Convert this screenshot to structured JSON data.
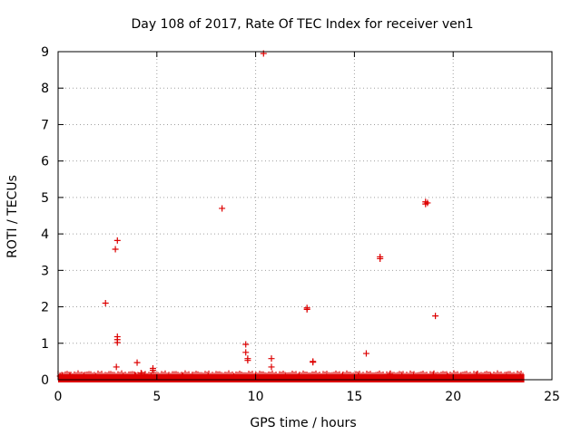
{
  "chart_data": {
    "type": "scatter",
    "title": "Day 108 of 2017, Rate Of TEC Index for receiver ven1",
    "xlabel": "GPS time / hours",
    "ylabel": "ROTI / TECUs",
    "xlim": [
      0,
      25
    ],
    "ylim": [
      0,
      9
    ],
    "grid": true,
    "marker": "+",
    "series_color": "#dd0000",
    "x_ticks": [
      {
        "value": 0,
        "label": "0"
      },
      {
        "value": 5,
        "label": "5"
      },
      {
        "value": 10,
        "label": "10"
      },
      {
        "value": 15,
        "label": "15"
      },
      {
        "value": 20,
        "label": "20"
      },
      {
        "value": 25,
        "label": "25"
      }
    ],
    "y_ticks": [
      {
        "value": 0,
        "label": "0"
      },
      {
        "value": 1,
        "label": "1"
      },
      {
        "value": 2,
        "label": "2"
      },
      {
        "value": 3,
        "label": "3"
      },
      {
        "value": 4,
        "label": "4"
      },
      {
        "value": 5,
        "label": "5"
      },
      {
        "value": 6,
        "label": "6"
      },
      {
        "value": 7,
        "label": "7"
      },
      {
        "value": 8,
        "label": "8"
      },
      {
        "value": 9,
        "label": "9"
      }
    ],
    "baseline_band": {
      "x_start": 0.0,
      "x_end": 23.6,
      "y_min": 0.0,
      "y_max": 0.08
    },
    "points": [
      {
        "x": 0.1,
        "y": 0.1
      },
      {
        "x": 0.2,
        "y": 0.12
      },
      {
        "x": 0.6,
        "y": 0.1
      },
      {
        "x": 1.3,
        "y": 0.12
      },
      {
        "x": 1.9,
        "y": 0.08
      },
      {
        "x": 2.4,
        "y": 2.1
      },
      {
        "x": 2.9,
        "y": 3.58
      },
      {
        "x": 3.0,
        "y": 3.82
      },
      {
        "x": 3.0,
        "y": 1.18
      },
      {
        "x": 3.0,
        "y": 1.1
      },
      {
        "x": 3.0,
        "y": 1.02
      },
      {
        "x": 2.95,
        "y": 0.35
      },
      {
        "x": 3.3,
        "y": 0.1
      },
      {
        "x": 3.9,
        "y": 0.12
      },
      {
        "x": 4.0,
        "y": 0.47
      },
      {
        "x": 4.2,
        "y": 0.18
      },
      {
        "x": 4.4,
        "y": 0.14
      },
      {
        "x": 4.8,
        "y": 0.31
      },
      {
        "x": 4.8,
        "y": 0.26
      },
      {
        "x": 4.7,
        "y": 0.12
      },
      {
        "x": 5.6,
        "y": 0.1
      },
      {
        "x": 6.3,
        "y": 0.1
      },
      {
        "x": 6.8,
        "y": 0.12
      },
      {
        "x": 7.6,
        "y": 0.1
      },
      {
        "x": 8.3,
        "y": 4.7
      },
      {
        "x": 8.9,
        "y": 0.1
      },
      {
        "x": 9.5,
        "y": 0.97
      },
      {
        "x": 9.5,
        "y": 0.75
      },
      {
        "x": 9.6,
        "y": 0.58
      },
      {
        "x": 9.6,
        "y": 0.53
      },
      {
        "x": 10.0,
        "y": 0.12
      },
      {
        "x": 10.4,
        "y": 8.95
      },
      {
        "x": 10.8,
        "y": 0.58
      },
      {
        "x": 10.8,
        "y": 0.35
      },
      {
        "x": 11.5,
        "y": 0.1
      },
      {
        "x": 12.2,
        "y": 0.1
      },
      {
        "x": 12.6,
        "y": 1.97
      },
      {
        "x": 12.6,
        "y": 1.93
      },
      {
        "x": 12.9,
        "y": 0.5
      },
      {
        "x": 12.9,
        "y": 0.48
      },
      {
        "x": 13.6,
        "y": 0.1
      },
      {
        "x": 14.4,
        "y": 0.12
      },
      {
        "x": 15.2,
        "y": 0.1
      },
      {
        "x": 15.6,
        "y": 0.72
      },
      {
        "x": 16.3,
        "y": 3.37
      },
      {
        "x": 16.3,
        "y": 3.32
      },
      {
        "x": 16.8,
        "y": 0.15
      },
      {
        "x": 17.4,
        "y": 0.1
      },
      {
        "x": 18.0,
        "y": 0.12
      },
      {
        "x": 18.6,
        "y": 4.88
      },
      {
        "x": 18.6,
        "y": 4.82
      },
      {
        "x": 18.7,
        "y": 4.85
      },
      {
        "x": 19.1,
        "y": 1.75
      },
      {
        "x": 19.0,
        "y": 0.14
      },
      {
        "x": 19.7,
        "y": 0.1
      },
      {
        "x": 20.4,
        "y": 0.12
      },
      {
        "x": 21.2,
        "y": 0.14
      },
      {
        "x": 21.9,
        "y": 0.1
      },
      {
        "x": 22.7,
        "y": 0.1
      },
      {
        "x": 23.4,
        "y": 0.08
      }
    ]
  }
}
